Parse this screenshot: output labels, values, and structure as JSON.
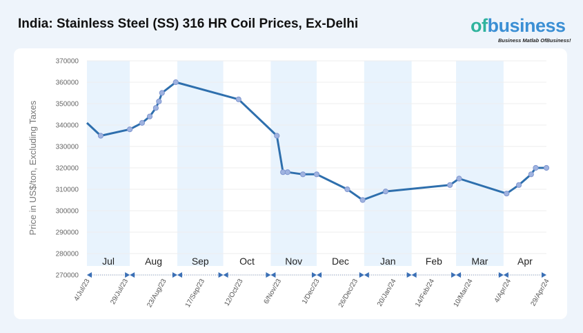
{
  "header": {
    "title": "India: Stainless Steel (SS) 316 HR Coil Prices, Ex-Delhi",
    "logo_text": "ofbusiness",
    "logo_tagline": "Business Matlab OfBusiness!"
  },
  "colors": {
    "line": "#2e6fad",
    "marker": "#9fb3e0",
    "band": "#e8f3fd",
    "arrow": "#3a6fb5",
    "logo_green": "#2fb39d",
    "logo_blue": "#3b8fd4"
  },
  "chart_data": {
    "type": "line",
    "title": "",
    "ylabel": "Price in US$/ton, Excluding Taxes",
    "xlabel": "",
    "ylim": [
      270000,
      370000
    ],
    "yticks": [
      270000,
      280000,
      290000,
      300000,
      310000,
      320000,
      330000,
      340000,
      350000,
      360000,
      370000
    ],
    "xlim": [
      "2023-07-04",
      "2024-04-29"
    ],
    "xtick_labels": [
      "4/Jul/23",
      "29/Jul/23",
      "23/Aug/23",
      "17/Sep/23",
      "12/Oct/23",
      "6/Nov/23",
      "1/Dec/23",
      "26/Dec/23",
      "20/Jan/24",
      "14/Feb/24",
      "10/Mar/24",
      "4/Apr/24",
      "29/Apr/24"
    ],
    "xtick_dates": [
      "2023-07-04",
      "2023-07-29",
      "2023-08-23",
      "2023-09-17",
      "2023-10-12",
      "2023-11-06",
      "2023-12-01",
      "2023-12-26",
      "2024-01-20",
      "2024-02-14",
      "2024-03-10",
      "2024-04-04",
      "2024-04-29"
    ],
    "months": [
      {
        "label": "Jul",
        "start": "2023-07-04",
        "end": "2023-08-01",
        "shaded": true
      },
      {
        "label": "Aug",
        "start": "2023-08-01",
        "end": "2023-09-01",
        "shaded": false
      },
      {
        "label": "Sep",
        "start": "2023-09-01",
        "end": "2023-10-01",
        "shaded": true
      },
      {
        "label": "Oct",
        "start": "2023-10-01",
        "end": "2023-11-01",
        "shaded": false
      },
      {
        "label": "Nov",
        "start": "2023-11-01",
        "end": "2023-12-01",
        "shaded": true
      },
      {
        "label": "Dec",
        "start": "2023-12-01",
        "end": "2024-01-01",
        "shaded": false
      },
      {
        "label": "Jan",
        "start": "2024-01-01",
        "end": "2024-02-01",
        "shaded": true
      },
      {
        "label": "Feb",
        "start": "2024-02-01",
        "end": "2024-03-01",
        "shaded": false
      },
      {
        "label": "Mar",
        "start": "2024-03-01",
        "end": "2024-04-01",
        "shaded": true
      },
      {
        "label": "Apr",
        "start": "2024-04-01",
        "end": "2024-04-29",
        "shaded": false
      }
    ],
    "series": [
      {
        "x": [
          "2023-07-04",
          "2023-07-13",
          "2023-08-01",
          "2023-08-09",
          "2023-08-14",
          "2023-08-18",
          "2023-08-20",
          "2023-08-22",
          "2023-08-31",
          "2023-10-11",
          "2023-11-05",
          "2023-11-09",
          "2023-11-12",
          "2023-11-22",
          "2023-12-01",
          "2023-12-21",
          "2023-12-31",
          "2024-01-15",
          "2024-02-26",
          "2024-03-03",
          "2024-04-03",
          "2024-04-11",
          "2024-04-19",
          "2024-04-22",
          "2024-04-29"
        ],
        "y": [
          341000,
          335000,
          338000,
          341000,
          344000,
          348000,
          351000,
          355000,
          360000,
          352000,
          335000,
          318000,
          318000,
          317000,
          317000,
          310000,
          305000,
          309000,
          312000,
          315000,
          308000,
          312000,
          317000,
          320000,
          320000
        ]
      }
    ],
    "grid": true,
    "legend": "none"
  }
}
